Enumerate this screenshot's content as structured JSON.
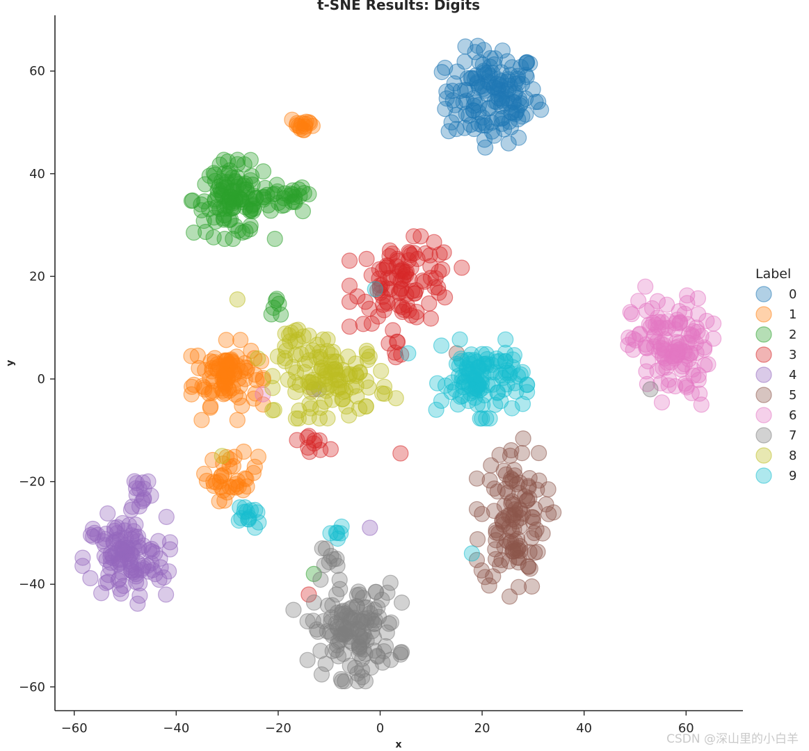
{
  "chart_data": {
    "type": "scatter",
    "title": "t-SNE Results: Digits",
    "xlabel": "x",
    "ylabel": "y",
    "xlim": [
      -64,
      71
    ],
    "ylim": [
      -64,
      71
    ],
    "xticks": [
      -60,
      -40,
      -20,
      0,
      20,
      40,
      60
    ],
    "yticks": [
      -60,
      -40,
      -20,
      0,
      20,
      40,
      60
    ],
    "xtick_labels": [
      "−60",
      "−40",
      "−20",
      "0",
      "20",
      "40",
      "60"
    ],
    "ytick_labels": [
      "−60",
      "−40",
      "−20",
      "0",
      "20",
      "40",
      "60"
    ],
    "grid": false,
    "legend": {
      "title": "Label",
      "placement": "right"
    },
    "marker_alpha": 0.35,
    "series": [
      {
        "name": "0",
        "color": "#1f77b4",
        "clusters": [
          {
            "cx": 22,
            "cy": 55,
            "sx": 4.5,
            "sy": 4.5,
            "n": 140
          }
        ],
        "points": [
          [
            14,
            50
          ],
          [
            24,
            64
          ],
          [
            13,
            56
          ],
          [
            31,
            54
          ]
        ]
      },
      {
        "name": "1",
        "color": "#ff7f0e",
        "clusters": [
          {
            "cx": -30,
            "cy": 1,
            "sx": 3.2,
            "sy": 3.0,
            "n": 90
          },
          {
            "cx": -29,
            "cy": -19,
            "sx": 2.5,
            "sy": 2.2,
            "n": 35
          },
          {
            "cx": -15,
            "cy": 49.5,
            "sx": 1.3,
            "sy": 0.8,
            "n": 15
          }
        ],
        "points": [
          [
            -37,
            -3
          ],
          [
            -35,
            -8
          ],
          [
            -28,
            -8
          ]
        ]
      },
      {
        "name": "2",
        "color": "#2ca02c",
        "clusters": [
          {
            "cx": -29,
            "cy": 35,
            "sx": 3.8,
            "sy": 3.5,
            "n": 110
          },
          {
            "cx": -19,
            "cy": 35,
            "sx": 2.6,
            "sy": 1.5,
            "n": 25
          },
          {
            "cx": -20,
            "cy": 13.5,
            "sx": 0.6,
            "sy": 1.0,
            "n": 6
          }
        ],
        "points": [
          [
            -14,
            36
          ],
          [
            -13,
            -38
          ]
        ]
      },
      {
        "name": "3",
        "color": "#d62728",
        "clusters": [
          {
            "cx": 5,
            "cy": 19,
            "sx": 5.0,
            "sy": 4.0,
            "n": 95
          },
          {
            "cx": 3,
            "cy": 6,
            "sx": 1.0,
            "sy": 0.8,
            "n": 6
          },
          {
            "cx": -13,
            "cy": -12,
            "sx": 1.5,
            "sy": 1.0,
            "n": 10
          }
        ],
        "points": [
          [
            4,
            -14.5
          ],
          [
            -14,
            -42
          ],
          [
            2.5,
            9.5
          ]
        ]
      },
      {
        "name": "4",
        "color": "#9467bd",
        "clusters": [
          {
            "cx": -50,
            "cy": -35,
            "sx": 4.0,
            "sy": 4.0,
            "n": 110
          },
          {
            "cx": -47,
            "cy": -22,
            "sx": 1.3,
            "sy": 2.2,
            "n": 15
          }
        ],
        "points": [
          [
            -42,
            -42
          ],
          [
            -56,
            -30
          ],
          [
            -2,
            -29
          ]
        ]
      },
      {
        "name": "5",
        "color": "#8c564b",
        "clusters": [
          {
            "cx": 26,
            "cy": -27,
            "sx": 3.2,
            "sy": 7.0,
            "n": 110
          }
        ],
        "points": [
          [
            34,
            -26
          ],
          [
            -13,
            -2
          ],
          [
            15,
            5
          ]
        ]
      },
      {
        "name": "6",
        "color": "#e377c2",
        "clusters": [
          {
            "cx": 57,
            "cy": 6,
            "sx": 3.8,
            "sy": 4.8,
            "n": 120
          }
        ],
        "points": [
          [
            52,
            18
          ],
          [
            63,
            -5
          ],
          [
            -23,
            -3
          ]
        ]
      },
      {
        "name": "7",
        "color": "#7f7f7f",
        "clusters": [
          {
            "cx": -5,
            "cy": -49,
            "sx": 4.2,
            "sy": 4.5,
            "n": 130
          },
          {
            "cx": -11,
            "cy": -35,
            "sx": 1.5,
            "sy": 1.2,
            "n": 8
          }
        ],
        "points": [
          [
            -17,
            -45
          ],
          [
            53,
            -2
          ],
          [
            -12,
            -2
          ]
        ]
      },
      {
        "name": "8",
        "color": "#bcbd22",
        "clusters": [
          {
            "cx": -9,
            "cy": 0,
            "sx": 5.5,
            "sy": 3.5,
            "n": 110
          },
          {
            "cx": -17,
            "cy": 8.5,
            "sx": 1.5,
            "sy": 1.0,
            "n": 10
          }
        ],
        "points": [
          [
            -28,
            15.5
          ],
          [
            -24,
            4
          ],
          [
            -31,
            -15
          ]
        ]
      },
      {
        "name": "9",
        "color": "#17becf",
        "clusters": [
          {
            "cx": 20,
            "cy": 0,
            "sx": 4.0,
            "sy": 3.5,
            "n": 110
          },
          {
            "cx": -26,
            "cy": -27,
            "sx": 1.3,
            "sy": 0.9,
            "n": 14
          },
          {
            "cx": -8,
            "cy": -30,
            "sx": 0.8,
            "sy": 1.0,
            "n": 6
          }
        ],
        "points": [
          [
            -1,
            17.5
          ],
          [
            5.5,
            5
          ],
          [
            12,
            6.5
          ],
          [
            18,
            -34
          ],
          [
            11,
            -6
          ]
        ]
      }
    ]
  },
  "watermark": "CSDN @深山里的小白羊"
}
